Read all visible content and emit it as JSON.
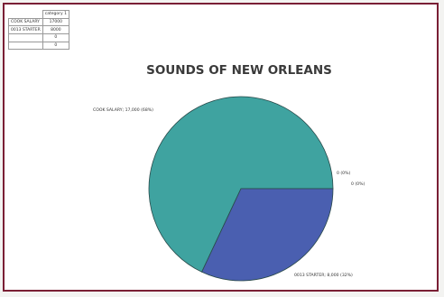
{
  "table": {
    "header": [
      "",
      "category 1"
    ],
    "rows": [
      [
        "COOK SALARY",
        "17000"
      ],
      [
        "0013 STARTER",
        "8000"
      ],
      [
        "",
        "0"
      ],
      [
        "",
        "0"
      ]
    ]
  },
  "chart_data": {
    "type": "pie",
    "title": "SOUNDS OF NEW ORLEANS",
    "slices": [
      {
        "name": "COOK SALARY",
        "value": 17000,
        "label": "COOK SALARY; 17,000 (68%)",
        "color": "#3fa3a0"
      },
      {
        "name": "0013 STARTER",
        "value": 8000,
        "label": "0013 STARTER; 8,000 (32%)",
        "color": "#4a5fb0"
      },
      {
        "name": "",
        "value": 0,
        "label": "0 (0%)",
        "color": "#3fa3a0"
      },
      {
        "name": "",
        "value": 0,
        "label": "0 (0%)",
        "color": "#3fa3a0"
      }
    ],
    "border_color": "#7a1f35"
  }
}
